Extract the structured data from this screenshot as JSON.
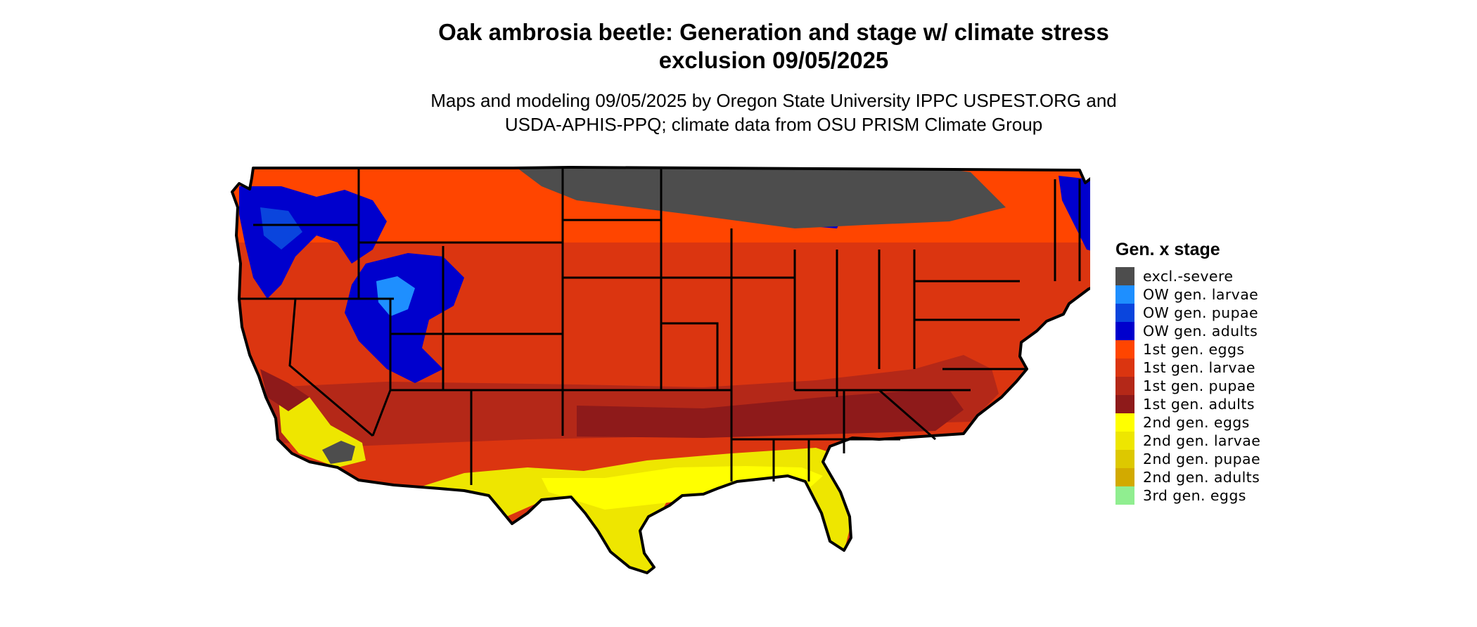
{
  "header": {
    "title_lines": [
      "Oak ambrosia beetle: Generation and stage w/ climate stress",
      "exclusion 09/05/2025"
    ],
    "subtitle_lines": [
      "Maps and modeling 09/05/2025 by Oregon State University IPPC USPEST.ORG and",
      "USDA-APHIS-PPQ; climate data from OSU PRISM Climate Group"
    ]
  },
  "legend": {
    "title": "Gen. x stage",
    "items": [
      {
        "label": "excl.-severe",
        "color": "#4d4d4d"
      },
      {
        "label": "OW gen. larvae",
        "color": "#1e8fff"
      },
      {
        "label": "OW gen. pupae",
        "color": "#0a45dd"
      },
      {
        "label": "OW gen. adults",
        "color": "#0000cd"
      },
      {
        "label": "1st gen. eggs",
        "color": "#ff4500"
      },
      {
        "label": "1st gen. larvae",
        "color": "#db3510"
      },
      {
        "label": "1st gen. pupae",
        "color": "#b42818"
      },
      {
        "label": "1st gen. adults",
        "color": "#8e1a1a"
      },
      {
        "label": "2nd gen. eggs",
        "color": "#ffff00"
      },
      {
        "label": "2nd gen. larvae",
        "color": "#eee600"
      },
      {
        "label": "2nd gen. pupae",
        "color": "#ddc800"
      },
      {
        "label": "2nd gen. adults",
        "color": "#d2aa00"
      },
      {
        "label": "3rd gen. eggs",
        "color": "#90ee90"
      }
    ]
  },
  "map": {
    "region": "contiguous-united-states",
    "state_borders": true
  }
}
